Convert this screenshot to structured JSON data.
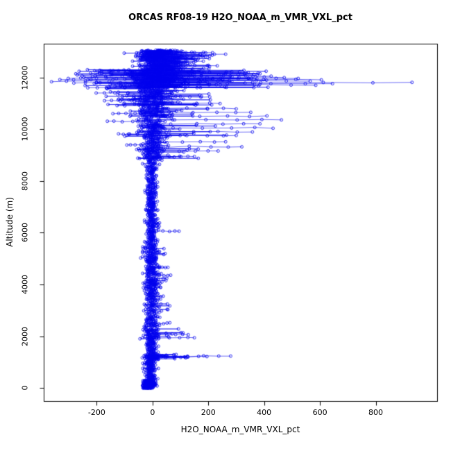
{
  "figure": {
    "background": "#ffffff"
  },
  "chart_data": {
    "type": "scatter",
    "title": "ORCAS RF08-19 H2O_NOAA_m_VMR_VXL_pct",
    "xlabel": "H2O_NOAA_m_VMR_VXL_pct",
    "ylabel": "Altitude (m)",
    "xlim": [
      -390,
      1020
    ],
    "ylim": [
      -500,
      13300
    ],
    "x_ticks": [
      -200,
      0,
      200,
      400,
      600,
      800
    ],
    "y_ticks": [
      0,
      2000,
      4000,
      6000,
      8000,
      10000,
      12000
    ],
    "color": "#0000ee",
    "marker": "open-circle",
    "line": true,
    "legend": "none",
    "grid": false,
    "seed": 20160129,
    "column_bands": [
      {
        "a0": 0,
        "a1": 120,
        "n": 200,
        "cx": -14,
        "sx": 9,
        "pp": 0,
        "pm": 0,
        "np": 0,
        "nm": 0
      },
      {
        "a0": 120,
        "a1": 300,
        "n": 150,
        "cx": -12,
        "sx": 10,
        "pp": 0.02,
        "pm": 30,
        "np": 0,
        "nm": 0
      },
      {
        "a0": 300,
        "a1": 1100,
        "n": 150,
        "cx": -8,
        "sx": 9,
        "pp": 0.02,
        "pm": 30,
        "np": 0,
        "nm": 0
      },
      {
        "a0": 1100,
        "a1": 1300,
        "n": 80,
        "cx": -2,
        "sx": 16,
        "pp": 0.2,
        "pm": 120,
        "np": 0.02,
        "nm": 20
      },
      {
        "a0": 1300,
        "a1": 1900,
        "n": 90,
        "cx": -5,
        "sx": 10,
        "pp": 0.04,
        "pm": 40,
        "np": 0,
        "nm": 0
      },
      {
        "a0": 1900,
        "a1": 2300,
        "n": 80,
        "cx": -2,
        "sx": 13,
        "pp": 0.15,
        "pm": 110,
        "np": 0.02,
        "nm": 20
      },
      {
        "a0": 2300,
        "a1": 5500,
        "n": 430,
        "cx": -4,
        "sx": 13,
        "pp": 0.07,
        "pm": 60,
        "np": 0.02,
        "nm": 25
      },
      {
        "a0": 5500,
        "a1": 6600,
        "n": 140,
        "cx": -4,
        "sx": 11,
        "pp": 0.05,
        "pm": 55,
        "np": 0.02,
        "nm": 20
      },
      {
        "a0": 6600,
        "a1": 8800,
        "n": 260,
        "cx": -3,
        "sx": 10,
        "pp": 0.03,
        "pm": 35,
        "np": 0.02,
        "nm": 18
      },
      {
        "a0": 8800,
        "a1": 9700,
        "n": 160,
        "cx": 0,
        "sx": 20,
        "pp": 0.15,
        "pm": 170,
        "np": 0.06,
        "nm": 60
      },
      {
        "a0": 9700,
        "a1": 10900,
        "n": 210,
        "cx": 2,
        "sx": 28,
        "pp": 0.17,
        "pm": 250,
        "np": 0.08,
        "nm": 110
      },
      {
        "a0": 10900,
        "a1": 11600,
        "n": 180,
        "cx": 0,
        "sx": 32,
        "pp": 0.14,
        "pm": 200,
        "np": 0.12,
        "nm": 170
      },
      {
        "a0": 11600,
        "a1": 12300,
        "n": 430,
        "cx": 8,
        "sx": 50,
        "pp": 0.2,
        "pm": 400,
        "np": 0.12,
        "nm": 260
      },
      {
        "a0": 12300,
        "a1": 12700,
        "n": 210,
        "cx": 25,
        "sx": 40,
        "pp": 0.12,
        "pm": 170,
        "np": 0.05,
        "nm": 60
      },
      {
        "a0": 12700,
        "a1": 13050,
        "n": 260,
        "cx": 18,
        "sx": 35,
        "pp": 0.1,
        "pm": 190,
        "np": 0.04,
        "nm": 45
      }
    ],
    "spikes_right": [
      [
        1180,
        120
      ],
      [
        1215,
        195
      ],
      [
        1235,
        280
      ],
      [
        1950,
        150
      ],
      [
        2060,
        128
      ],
      [
        2500,
        62
      ],
      [
        4350,
        65
      ],
      [
        4660,
        55
      ],
      [
        6060,
        95
      ],
      [
        8950,
        150
      ],
      [
        9150,
        235
      ],
      [
        9320,
        320
      ],
      [
        9500,
        262
      ],
      [
        9750,
        300
      ],
      [
        9900,
        358
      ],
      [
        10050,
        432
      ],
      [
        10200,
        385
      ],
      [
        10360,
        462
      ],
      [
        10500,
        410
      ],
      [
        10660,
        352
      ],
      [
        10800,
        300
      ],
      [
        11000,
        242
      ],
      [
        11250,
        205
      ],
      [
        11700,
        585
      ],
      [
        11760,
        645
      ],
      [
        11800,
        930
      ],
      [
        11860,
        565
      ],
      [
        11910,
        605
      ],
      [
        11960,
        522
      ],
      [
        12010,
        472
      ],
      [
        12060,
        425
      ],
      [
        12110,
        362
      ],
      [
        12210,
        312
      ],
      [
        12450,
        232
      ],
      [
        12610,
        182
      ],
      [
        12900,
        262
      ],
      [
        12960,
        215
      ]
    ],
    "spikes_left": [
      [
        9400,
        -92
      ],
      [
        9800,
        -122
      ],
      [
        10300,
        -162
      ],
      [
        10600,
        -142
      ],
      [
        11100,
        -172
      ],
      [
        11400,
        -202
      ],
      [
        11600,
        -232
      ],
      [
        11780,
        -282
      ],
      [
        11850,
        -362
      ],
      [
        11900,
        -332
      ],
      [
        11955,
        -302
      ],
      [
        12050,
        -252
      ],
      [
        12150,
        -222
      ],
      [
        12250,
        -182
      ]
    ]
  }
}
